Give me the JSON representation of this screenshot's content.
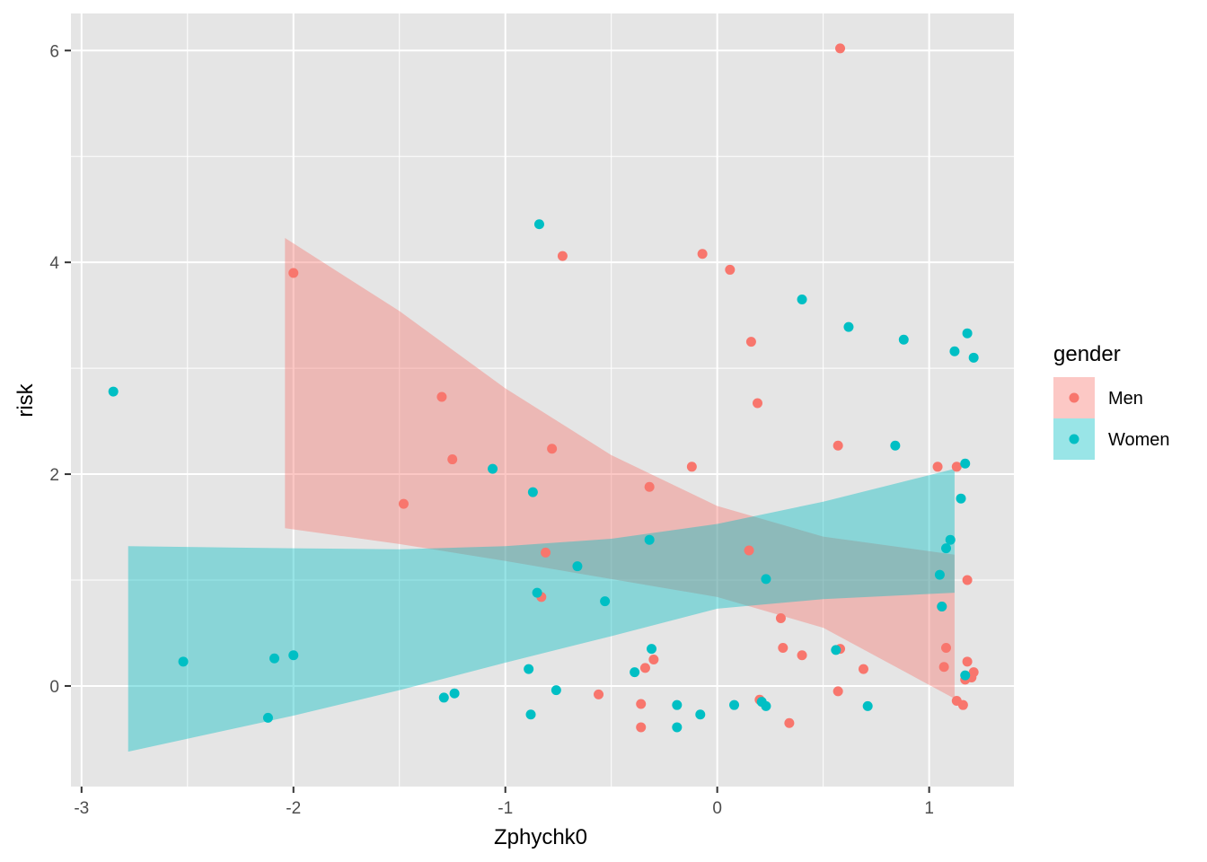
{
  "chart_data": {
    "type": "scatter",
    "xlabel": "Zphychk0",
    "ylabel": "risk",
    "xlim": [
      -3.05,
      1.4
    ],
    "ylim": [
      -0.95,
      6.35
    ],
    "x_ticks": [
      -3,
      -2,
      -1,
      0,
      1
    ],
    "x_tick_labels": [
      "-3",
      "-2",
      "-1",
      "0",
      "1"
    ],
    "y_ticks": [
      0,
      2,
      4,
      6
    ],
    "y_tick_labels": [
      "0",
      "2",
      "4",
      "6"
    ],
    "grid": true,
    "panel_background": "#e5e5e5",
    "grid_color": "#ffffff",
    "legend": {
      "title": "gender",
      "position": "right",
      "entries": [
        "Men",
        "Women"
      ]
    },
    "series": [
      {
        "name": "Men",
        "color": "#f8766d",
        "ribbon": {
          "x": [
            -2.04,
            -1.5,
            -1.0,
            -0.5,
            0.0,
            0.5,
            1.12
          ],
          "ymin": [
            1.49,
            1.34,
            1.18,
            1.01,
            0.84,
            0.55,
            -0.12
          ],
          "ymax": [
            4.23,
            3.54,
            2.81,
            2.18,
            1.7,
            1.41,
            1.24
          ]
        },
        "points": [
          [
            -2.0,
            3.9
          ],
          [
            -1.3,
            2.73
          ],
          [
            -1.25,
            2.14
          ],
          [
            -1.48,
            1.72
          ],
          [
            -0.73,
            4.06
          ],
          [
            -0.78,
            2.24
          ],
          [
            -0.81,
            1.26
          ],
          [
            -0.83,
            0.84
          ],
          [
            -0.32,
            1.88
          ],
          [
            -0.56,
            -0.08
          ],
          [
            -0.36,
            -0.17
          ],
          [
            -0.36,
            -0.39
          ],
          [
            -0.34,
            0.17
          ],
          [
            -0.3,
            0.25
          ],
          [
            -0.07,
            4.08
          ],
          [
            -0.12,
            2.07
          ],
          [
            0.06,
            3.93
          ],
          [
            0.16,
            3.25
          ],
          [
            0.19,
            2.67
          ],
          [
            0.15,
            1.28
          ],
          [
            0.3,
            0.64
          ],
          [
            0.31,
            0.36
          ],
          [
            0.34,
            -0.35
          ],
          [
            0.4,
            0.29
          ],
          [
            0.58,
            6.02
          ],
          [
            0.57,
            2.27
          ],
          [
            0.57,
            -0.05
          ],
          [
            0.58,
            0.35
          ],
          [
            0.69,
            0.16
          ],
          [
            0.2,
            -0.13
          ],
          [
            1.04,
            2.07
          ],
          [
            1.13,
            2.07
          ],
          [
            1.06,
            0.75
          ],
          [
            1.07,
            0.18
          ],
          [
            1.08,
            0.36
          ],
          [
            1.18,
            1.0
          ],
          [
            1.13,
            -0.14
          ],
          [
            1.16,
            -0.18
          ],
          [
            1.18,
            0.23
          ],
          [
            1.21,
            0.13
          ],
          [
            1.2,
            0.08
          ],
          [
            1.17,
            0.06
          ]
        ]
      },
      {
        "name": "Women",
        "color": "#00bfc4",
        "ribbon": {
          "x": [
            -2.78,
            -2.0,
            -1.5,
            -1.0,
            -0.5,
            0.0,
            0.5,
            1.12
          ],
          "ymin": [
            -0.62,
            -0.28,
            -0.04,
            0.22,
            0.47,
            0.73,
            0.82,
            0.88
          ],
          "ymax": [
            1.32,
            1.3,
            1.29,
            1.32,
            1.39,
            1.53,
            1.74,
            2.05
          ]
        },
        "points": [
          [
            -2.85,
            2.78
          ],
          [
            -2.52,
            0.23
          ],
          [
            -2.09,
            0.26
          ],
          [
            -2.0,
            0.29
          ],
          [
            -2.12,
            -0.3
          ],
          [
            -1.29,
            -0.11
          ],
          [
            -1.24,
            -0.07
          ],
          [
            -1.06,
            2.05
          ],
          [
            -0.84,
            4.36
          ],
          [
            -0.87,
            1.83
          ],
          [
            -0.85,
            0.88
          ],
          [
            -0.89,
            0.16
          ],
          [
            -0.88,
            -0.27
          ],
          [
            -0.76,
            -0.04
          ],
          [
            -0.66,
            1.13
          ],
          [
            -0.53,
            0.8
          ],
          [
            -0.32,
            1.38
          ],
          [
            -0.31,
            0.35
          ],
          [
            -0.39,
            0.13
          ],
          [
            -0.19,
            -0.18
          ],
          [
            -0.19,
            -0.39
          ],
          [
            -0.08,
            -0.27
          ],
          [
            0.08,
            -0.18
          ],
          [
            0.21,
            -0.15
          ],
          [
            0.23,
            -0.19
          ],
          [
            0.23,
            1.01
          ],
          [
            0.4,
            3.65
          ],
          [
            0.62,
            3.39
          ],
          [
            0.56,
            0.34
          ],
          [
            0.71,
            -0.19
          ],
          [
            0.84,
            2.27
          ],
          [
            0.88,
            3.27
          ],
          [
            1.05,
            1.05
          ],
          [
            1.06,
            0.75
          ],
          [
            1.08,
            1.3
          ],
          [
            1.1,
            1.38
          ],
          [
            1.12,
            3.16
          ],
          [
            1.15,
            1.77
          ],
          [
            1.17,
            2.1
          ],
          [
            1.18,
            3.33
          ],
          [
            1.21,
            3.1
          ],
          [
            1.17,
            0.1
          ]
        ]
      }
    ]
  }
}
